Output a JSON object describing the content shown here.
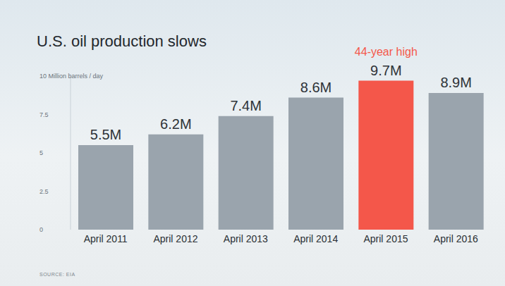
{
  "chart_data": {
    "type": "bar",
    "title": "U.S. oil production slows",
    "categories": [
      "April 2011",
      "April 2012",
      "April 2013",
      "April 2014",
      "April 2015",
      "April 2016"
    ],
    "values": [
      5.5,
      6.2,
      7.4,
      8.6,
      9.7,
      8.9
    ],
    "value_labels": [
      "5.5M",
      "6.2M",
      "7.4M",
      "8.6M",
      "9.7M",
      "8.9M"
    ],
    "data_labels": true,
    "colors": [
      "#9aa4ad",
      "#9aa4ad",
      "#9aa4ad",
      "#9aa4ad",
      "#f4574a",
      "#9aa4ad"
    ],
    "ylim": [
      0,
      10
    ],
    "yticks": [
      0,
      2.5,
      5,
      7.5,
      {
        "value": 10,
        "label": "10 Million barrels / day"
      }
    ],
    "grid": false,
    "annotations": [
      {
        "text": "44-year high",
        "category": "April 2015"
      }
    ],
    "source": "SOURCE: EIA"
  }
}
